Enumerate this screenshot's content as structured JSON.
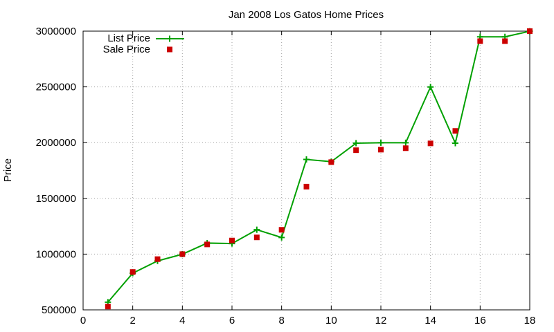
{
  "chart_data": {
    "type": "line",
    "title": "Jan 2008 Los Gatos Home Prices",
    "xlabel": "",
    "ylabel": "Price",
    "xlim": [
      0,
      18
    ],
    "ylim": [
      500000,
      3000000
    ],
    "x_ticks": [
      "0",
      "2",
      "4",
      "6",
      "8",
      "10",
      "12",
      "14",
      "16",
      "18"
    ],
    "y_ticks": [
      "500000",
      "1000000",
      "1500000",
      "2000000",
      "2500000",
      "3000000"
    ],
    "grid": true,
    "legend_position": "top-left",
    "series": [
      {
        "name": "List Price",
        "style": "line-with-plus-markers",
        "color": "#00a000",
        "x": [
          1,
          2,
          3,
          4,
          5,
          6,
          7,
          8,
          9,
          10,
          11,
          12,
          13,
          14,
          15,
          16,
          17,
          18
        ],
        "y": [
          569000,
          829000,
          939000,
          999000,
          1099000,
          1095000,
          1219000,
          1149000,
          1849000,
          1829000,
          1995000,
          1999000,
          1999000,
          2499000,
          1995000,
          2949000,
          2949000,
          2999000
        ]
      },
      {
        "name": "Sale Price",
        "style": "square-points",
        "color": "#cc0000",
        "x": [
          1,
          2,
          3,
          4,
          5,
          6,
          7,
          8,
          9,
          10,
          11,
          12,
          13,
          14,
          15,
          16,
          17,
          18
        ],
        "y": [
          530000,
          840000,
          955000,
          1000000,
          1087000,
          1122000,
          1150000,
          1218000,
          1605000,
          1825000,
          1932000,
          1937000,
          1950000,
          1993000,
          2105000,
          2910000,
          2910000,
          3000000
        ]
      }
    ]
  }
}
